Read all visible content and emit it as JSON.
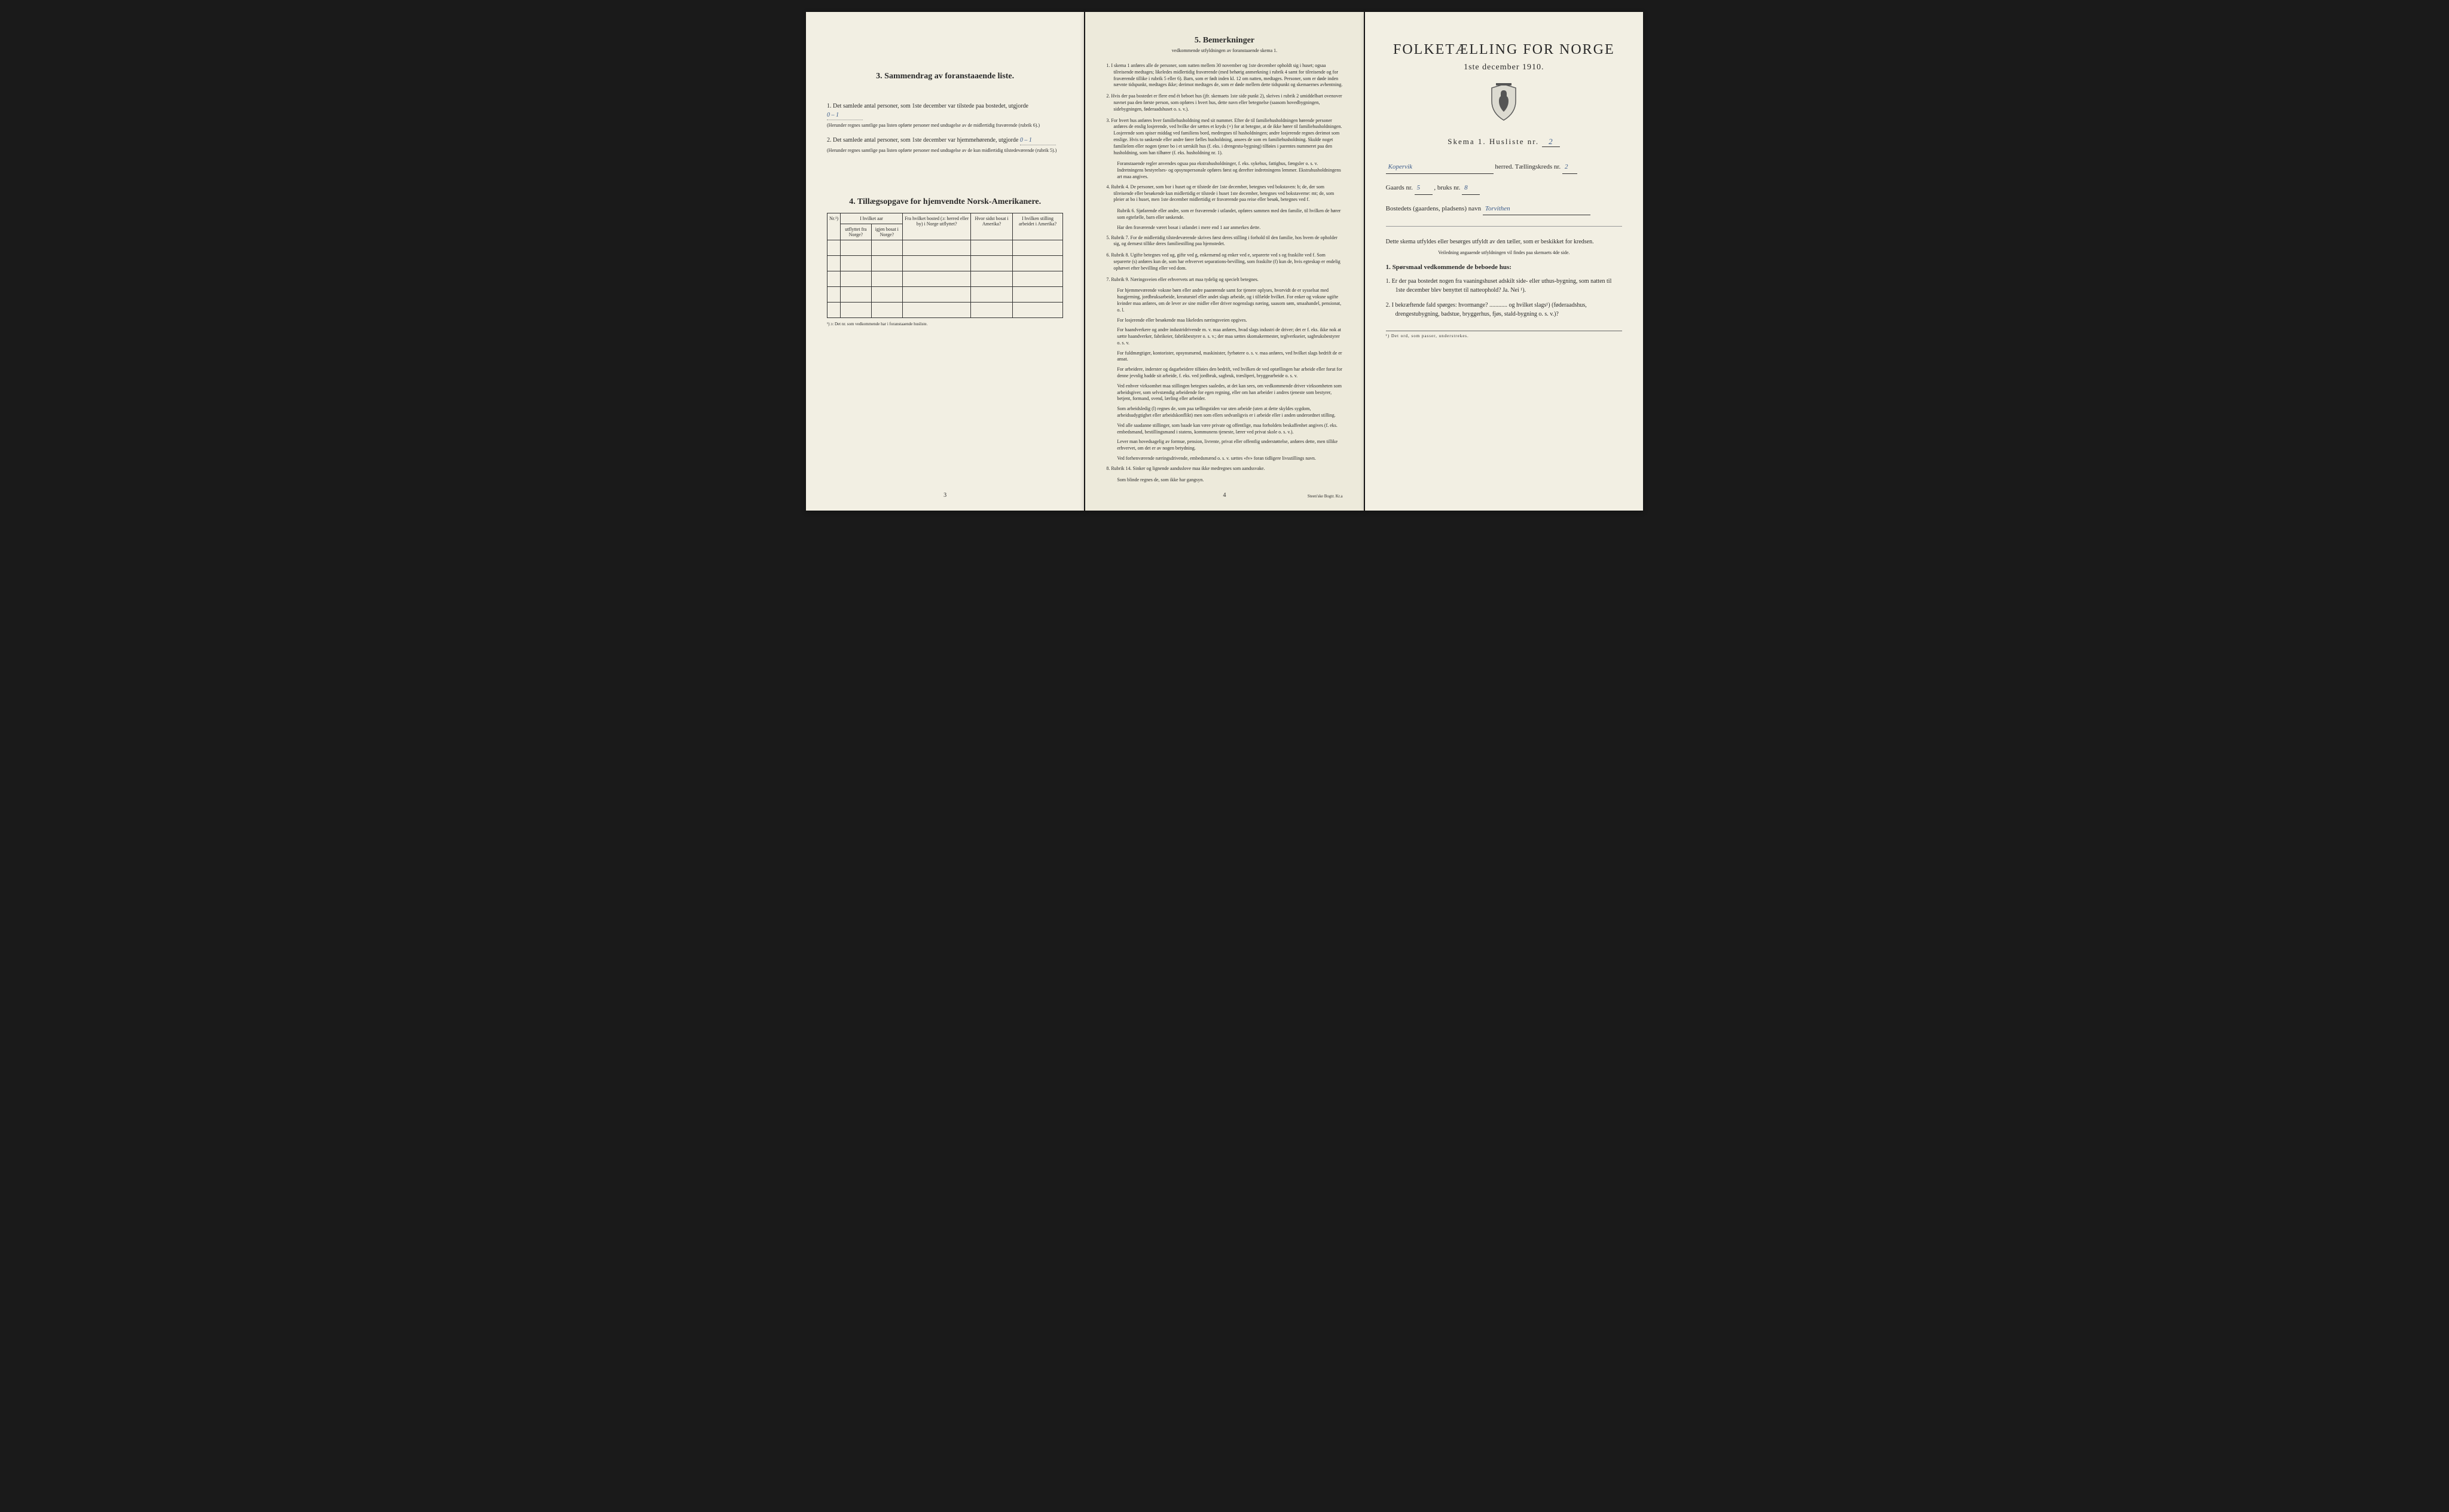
{
  "colors": {
    "page_bg": "#f0ede0",
    "page_bg_alt": "#edeadb",
    "text": "#2a2a2a",
    "handwritten": "#3a5a8a",
    "border": "#333333",
    "body_bg": "#1a1a1a"
  },
  "page1": {
    "section3": {
      "title": "3.  Sammendrag av foranstaaende liste.",
      "item1_pre": "1.  Det samlede antal personer, som 1ste december var tilstede paa bostedet, utgjorde",
      "item1_value": "0 – 1",
      "item1_note": "(Herunder regnes samtlige paa listen opførte personer med undtagelse av de midlertidig fraværende (rubrik 6).)",
      "item2_pre": "2.  Det samlede antal personer, som 1ste december var hjemmehørende, utgjorde",
      "item2_value": "0 – 1",
      "item2_note": "(Herunder regnes samtlige paa listen opførte personer med undtagelse av de kun midlertidig tilstedeværende (rubrik 5).)"
    },
    "section4": {
      "title": "4.  Tillægsopgave for hjemvendte Norsk-Amerikanere.",
      "headers": {
        "nr": "Nr.¹)",
        "year_group": "I hvilket aar",
        "utflyttet": "utflyttet fra Norge?",
        "igjen_bosat": "igjen bosat i Norge?",
        "fra_bosted": "Fra hvilket bosted (ɔ: herred eller by) i Norge utflyttet?",
        "hvor_sidst": "Hvor sidst bosat i Amerika?",
        "stilling": "I hvilken stilling arbeidet i Amerika?"
      },
      "footnote": "¹) ɔ: Det nr. som vedkommende har i foranstaaende husliste.",
      "empty_rows": 5
    },
    "page_num": "3"
  },
  "page2": {
    "title": "5.  Bemerkninger",
    "subtitle": "vedkommende utfyldningen av foranstaaende skema 1.",
    "remarks": [
      "1.  I skema 1 anføres alle de personer, som natten mellem 30 november og 1ste december opholdt sig i huset; ogsaa tilreisende medtages; likeledes midlertidig fraværende (med behørig anmerkning i rubrik 4 samt for tilreisende og for fraværende tillike i rubrik 5 eller 6). Barn, som er født inden kl. 12 om natten, medtages. Personer, som er døde inden nævnte tidspunkt, medtages ikke; derimot medtages de, som er døde mellem dette tidspunkt og skemaernes avhentning.",
      "2.  Hvis der paa bostedet er flere end ét beboet hus (jfr. skemaets 1ste side punkt 2), skrives i rubrik 2 umiddelbart ovenover navnet paa den første person, som opføres i hvert hus, dette navn eller betegnelse (saasom hovedbygningen, sidebygningen, føderaadshuset o. s. v.).",
      "3.  For hvert hus anføres hver familiehusholdning med sit nummer. Efter de til familiehusholdningen hørende personer anføres de enslig losjerende, ved hvilke der sættes et kryds (×) for at betegne, at de ikke hører til familiehusholdningen. Losjerende som spiser middag ved familiens bord, medregnes til husholdningen; andre losjerende regnes derimot som enslige. Hvis to søskende eller andre fører fælles husholdning, ansees de som en familiehusholdning. Skulde noget familielem eller nogen tjener bo i et særskilt hus (f. eks. i drengestu-bygning) tilføies i parentes nummeret paa den husholdning, som han tilhører (f. eks. husholdning nr. 1).",
      "Foranstaaende regler anvendes ogsaa paa ekstrahusholdninger, f. eks. sykehus, fattighus, fængsler o. s. v. Indretningens bestyrelses- og opsynspersonale opføres først og derefter indretningens lemmer. Ekstrahusholdningens art maa angives.",
      "4.  Rubrik 4.  De personer, som bor i huset og er tilstede der 1ste december, betegnes ved bokstaven: b; de, der som tilreisende eller besøkende kun midlertidig er tilstede i huset 1ste december, betegnes ved bokstaverne: mt; de, som pleier at bo i huset, men 1ste december midlertidig er fraværende paa reise eller besøk, betegnes ved f.",
      "Rubrik 6.  Sjøfarende eller andre, som er fraværende i utlandet, opføres sammen med den familie, til hvilken de hører som egtefælle, barn eller søskende.",
      "Har den fraværende været bosat i utlandet i mere end 1 aar anmerkes dette.",
      "5.  Rubrik 7.  For de midlertidig tilstedeværende skrives først deres stilling i forhold til den familie, hos hvem de opholder sig, og dernæst tillike deres familiestilling paa hjemstedet.",
      "6.  Rubrik 8.  Ugifte betegnes ved ug, gifte ved g, enkemænd og enker ved e, separerte ved s og fraskilte ved f. Som separerte (s) anføres kun de, som har erhvervet separations-bevilling, som fraskilte (f) kun de, hvis egteskap er endelig ophævet efter bevilling eller ved dom.",
      "7.  Rubrik 9.  Næringsveien eller erhvervets art maa tydelig og specielt betegnes.",
      "For hjemmeværende voksne børn eller andre paarørende samt for tjenere oplyses, hvorvidt de er sysselsat med husgjerning, jordbruksarbeide, kreaturstel eller andet slags arbeide, og i tilfælde hvilket. For enker og voksne ugifte kvinder maa anføres, om de lever av sine midler eller driver nogenslags næring, saasom søm, smaahandel, pensionat, o. l.",
      "For losjerende eller besøkende maa likeledes næringsveien opgives.",
      "For haandverkere og andre industridrivende m. v. maa anføres, hvad slags industri de driver; det er f. eks. ikke nok at sætte haandverker, fabrikeier, fabrikbestyrer o. s. v.; der maa sættes skomakermester, teglverkseier, sagbruksbestyrer o. s. v.",
      "For fuldmægtiger, kontorister, opsynsmænd, maskinister, fyrbøtere o. s. v. maa anføres, ved hvilket slags bedrift de er ansat.",
      "For arbeidere, inderster og dagarbeidere tilføies den bedrift, ved hvilken de ved optællingen har arbeide eller forut for denne jevnlig hadde sit arbeide, f. eks. ved jordbruk, sagbruk, træsliperi, bryggearbeide o. s. v.",
      "Ved enhver virksomhet maa stillingen betegnes saaledes, at det kan sees, om vedkommende driver virksomheten som arbeidsgiver, som selvstændig arbeidende for egen regning, eller om han arbeider i andres tjeneste som bestyrer, betjent, formand, svend, lærling eller arbeider.",
      "Som arbeidsledig (l) regnes de, som paa tællingstiden var uten arbeide (uten at dette skyldes sygdom, arbeidsudygtighet eller arbeidskonflikt) men som ellers sedvanligvis er i arbeide eller i anden underordnet stilling.",
      "Ved alle saadanne stillinger, som baade kan være private og offentlige, maa forholdets beskaffenhet angives (f. eks. embedsmand, bestillingsmand i statens, kommunens tjeneste, lærer ved privat skole o. s. v.).",
      "Lever man hovedsagelig av formue, pension, livrente, privat eller offentlig understøttelse, anføres dette, men tillike erhvervet, om det er av nogen betydning.",
      "Ved forhenværende næringsdrivende, embedsmænd o. s. v. sættes «fv» foran tidligere livsstillings navn.",
      "8.  Rubrik 14.  Sinker og lignende aandsslove maa ikke medregnes som aandssvake.",
      "Som blinde regnes de, som ikke har gangsyn."
    ],
    "page_num": "4",
    "printer": "Steen'ske Bogtr. Kr.a"
  },
  "page3": {
    "title": "FOLKETÆLLING FOR NORGE",
    "date": "1ste december 1910.",
    "skema_label": "Skema 1.  Husliste nr.",
    "skema_nr": "2",
    "herred_label": "herred.  Tællingskreds nr.",
    "herred_value": "Kopervik",
    "kreds_nr": "2",
    "gaard_label": "Gaards nr.",
    "gaard_nr": "5",
    "bruks_label": ", bruks nr.",
    "bruks_nr": "8",
    "bosted_label": "Bostedets (gaardens, pladsens) navn",
    "bosted_value": "Torvithen",
    "instruction": "Dette skema utfyldes eller besørges utfyldt av den tæller, som er beskikket for kredsen.",
    "sub_instruction": "Veiledning angaaende utfyldningen vil findes paa skemaets 4de side.",
    "q_heading": "1.  Spørsmaal vedkommende de beboede hus:",
    "q1": "1.  Er der paa bostedet nogen fra vaaningshuset adskilt side- eller uthus-bygning, som natten til 1ste december blev benyttet til natteophold?  Ja.  Nei ¹).",
    "q2": "2.  I bekræftende fald spørges: hvormange? ............ og hvilket slags¹) (føderaadshus, drengestubygning, badstue, bryggerhus, fjøs, stald-bygning o. s. v.)?",
    "footnote": "¹) Det ord, som passer, understrekes."
  }
}
